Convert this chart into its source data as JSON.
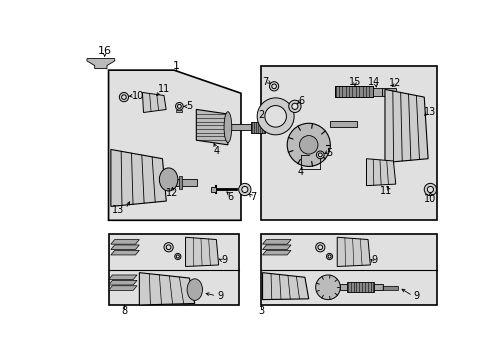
{
  "bg_color": "#ffffff",
  "panel_bg": "#e0e0e0",
  "line_color": "#000000",
  "fig_w": 4.89,
  "fig_h": 3.6,
  "dpi": 100
}
